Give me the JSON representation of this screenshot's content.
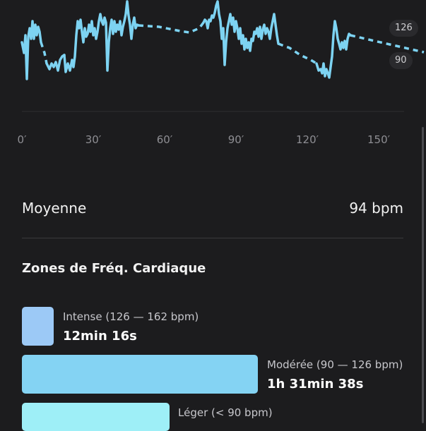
{
  "chart": {
    "y_labels": [
      "126",
      "90"
    ],
    "x_labels": [
      "0′",
      "30′",
      "60′",
      "90′",
      "120′",
      "150′"
    ],
    "line_color": "#7dd3f2"
  },
  "summary": {
    "label": "Moyenne",
    "value": "94 bpm"
  },
  "zones": {
    "title": "Zones de Fréq. Cardiaque",
    "items": [
      {
        "label": "Intense (126 — 162 bpm)",
        "time": "12min 16s",
        "color": "#9cc9f6"
      },
      {
        "label": "Modérée (90 — 126 bpm)",
        "time": "1h 31min 38s",
        "color": "#84d3f3"
      },
      {
        "label": "Léger (< 90 bpm)",
        "time": "",
        "color": "#9eeff7"
      }
    ]
  }
}
